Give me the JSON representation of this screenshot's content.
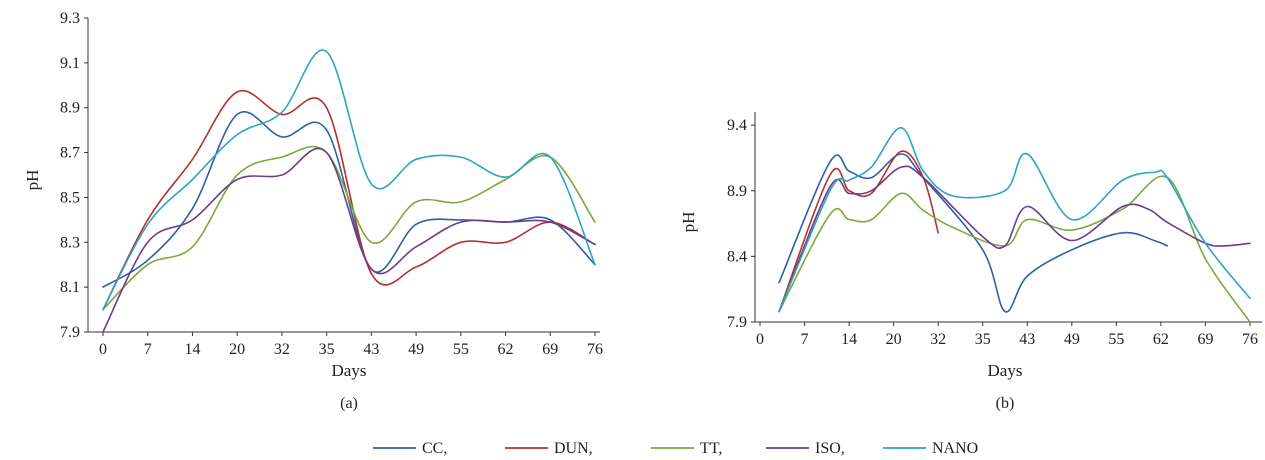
{
  "chart_data": [
    {
      "type": "line",
      "panel_label": "(a)",
      "xlabel": "Days",
      "ylabel": "pH",
      "x_ticks": [
        "0",
        "7",
        "14",
        "20",
        "32",
        "35",
        "43",
        "49",
        "55",
        "62",
        "69",
        "76"
      ],
      "y_ticks": [
        "7.9",
        "8.1",
        "8.3",
        "8.5",
        "8.7",
        "8.9",
        "9.1",
        "9.3"
      ],
      "ylim": [
        7.9,
        9.3
      ],
      "grid": false,
      "series": [
        {
          "name": "CC",
          "color": "#2e5fa8",
          "points": [
            [
              0,
              8.1
            ],
            [
              7,
              8.22
            ],
            [
              14,
              8.45
            ],
            [
              20,
              8.87
            ],
            [
              32,
              8.77
            ],
            [
              35,
              8.8
            ],
            [
              43,
              8.18
            ],
            [
              49,
              8.38
            ],
            [
              55,
              8.4
            ],
            [
              62,
              8.39
            ],
            [
              69,
              8.4
            ],
            [
              76,
              8.2
            ]
          ]
        },
        {
          "name": "DUN",
          "color": "#b5312d",
          "points": [
            [
              0,
              8.0
            ],
            [
              7,
              8.4
            ],
            [
              14,
              8.67
            ],
            [
              20,
              8.97
            ],
            [
              32,
              8.87
            ],
            [
              35,
              8.9
            ],
            [
              43,
              8.16
            ],
            [
              49,
              8.19
            ],
            [
              55,
              8.3
            ],
            [
              62,
              8.3
            ],
            [
              69,
              8.39
            ],
            [
              76,
              8.29
            ]
          ]
        },
        {
          "name": "TT",
          "color": "#7aab3a",
          "points": [
            [
              0,
              8.0
            ],
            [
              7,
              8.2
            ],
            [
              14,
              8.28
            ],
            [
              20,
              8.6
            ],
            [
              32,
              8.68
            ],
            [
              35,
              8.7
            ],
            [
              43,
              8.3
            ],
            [
              49,
              8.48
            ],
            [
              55,
              8.48
            ],
            [
              62,
              8.58
            ],
            [
              69,
              8.68
            ],
            [
              76,
              8.39
            ]
          ]
        },
        {
          "name": "ISO",
          "color": "#6a3d8f",
          "points": [
            [
              0,
              7.9
            ],
            [
              7,
              8.3
            ],
            [
              14,
              8.4
            ],
            [
              20,
              8.58
            ],
            [
              32,
              8.6
            ],
            [
              35,
              8.7
            ],
            [
              43,
              8.18
            ],
            [
              49,
              8.28
            ],
            [
              55,
              8.39
            ],
            [
              62,
              8.39
            ],
            [
              69,
              8.39
            ],
            [
              76,
              8.29
            ]
          ]
        },
        {
          "name": "NANO",
          "color": "#2ea3c8",
          "points": [
            [
              0,
              8.0
            ],
            [
              7,
              8.38
            ],
            [
              14,
              8.58
            ],
            [
              20,
              8.78
            ],
            [
              32,
              8.88
            ],
            [
              35,
              9.15
            ],
            [
              43,
              8.56
            ],
            [
              49,
              8.67
            ],
            [
              55,
              8.68
            ],
            [
              62,
              8.59
            ],
            [
              69,
              8.68
            ],
            [
              76,
              8.2
            ]
          ]
        }
      ]
    },
    {
      "type": "line",
      "panel_label": "(b)",
      "xlabel": "Days",
      "ylabel": "pH",
      "x_ticks": [
        "0",
        "7",
        "14",
        "20",
        "32",
        "35",
        "43",
        "49",
        "55",
        "62",
        "69",
        "76"
      ],
      "y_ticks": [
        "7.9",
        "8.4",
        "8.9",
        "9.4"
      ],
      "ylim": [
        7.9,
        9.5
      ],
      "grid": false,
      "series": [
        {
          "name": "CC",
          "color": "#2e5fa8",
          "points": [
            [
              3,
              8.2
            ],
            [
              11,
              9.12
            ],
            [
              14,
              9.05
            ],
            [
              17,
              9.0
            ],
            [
              22,
              9.18
            ],
            [
              28,
              9.0
            ],
            [
              35,
              8.45
            ],
            [
              39,
              7.98
            ],
            [
              43,
              8.25
            ],
            [
              49,
              8.45
            ],
            [
              56,
              8.58
            ],
            [
              61,
              8.52
            ],
            [
              63,
              8.48
            ]
          ]
        },
        {
          "name": "DUN",
          "color": "#b5312d",
          "points": [
            [
              3,
              7.98
            ],
            [
              11,
              9.02
            ],
            [
              14,
              8.9
            ],
            [
              17,
              8.88
            ],
            [
              22,
              9.2
            ],
            [
              28,
              9.0
            ],
            [
              32,
              8.58
            ]
          ]
        },
        {
          "name": "TT",
          "color": "#7aab3a",
          "points": [
            [
              3,
              7.98
            ],
            [
              11,
              8.72
            ],
            [
              14,
              8.68
            ],
            [
              17,
              8.68
            ],
            [
              22,
              8.88
            ],
            [
              28,
              8.75
            ],
            [
              33,
              8.62
            ],
            [
              39,
              8.48
            ],
            [
              43,
              8.68
            ],
            [
              49,
              8.6
            ],
            [
              56,
              8.76
            ],
            [
              63,
              9.0
            ],
            [
              69,
              8.38
            ],
            [
              76,
              7.9
            ]
          ]
        },
        {
          "name": "ISO",
          "color": "#6a3d8f",
          "points": [
            [
              3,
              7.98
            ],
            [
              11,
              8.93
            ],
            [
              14,
              8.88
            ],
            [
              17,
              8.9
            ],
            [
              22,
              9.08
            ],
            [
              28,
              9.0
            ],
            [
              35,
              8.55
            ],
            [
              39,
              8.48
            ],
            [
              43,
              8.78
            ],
            [
              49,
              8.52
            ],
            [
              56,
              8.78
            ],
            [
              60,
              8.76
            ],
            [
              63,
              8.66
            ],
            [
              69,
              8.5
            ],
            [
              72,
              8.48
            ],
            [
              76,
              8.5
            ]
          ]
        },
        {
          "name": "NANO",
          "color": "#2ea3c8",
          "points": [
            [
              3,
              7.98
            ],
            [
              11,
              8.9
            ],
            [
              14,
              8.98
            ],
            [
              17,
              9.08
            ],
            [
              22,
              9.38
            ],
            [
              28,
              9.05
            ],
            [
              33,
              8.86
            ],
            [
              39,
              8.9
            ],
            [
              43,
              9.18
            ],
            [
              49,
              8.68
            ],
            [
              56,
              8.98
            ],
            [
              61,
              9.04
            ],
            [
              63,
              9.0
            ],
            [
              69,
              8.5
            ],
            [
              76,
              8.08
            ]
          ]
        }
      ]
    }
  ],
  "legend": {
    "entries": [
      {
        "label": "CC,",
        "color": "#2e5fa8"
      },
      {
        "label": "DUN,",
        "color": "#b5312d"
      },
      {
        "label": "TT,",
        "color": "#7aab3a"
      },
      {
        "label": "ISO,",
        "color": "#6a3d8f"
      },
      {
        "label": "NANO",
        "color": "#2ea3c8"
      }
    ]
  }
}
